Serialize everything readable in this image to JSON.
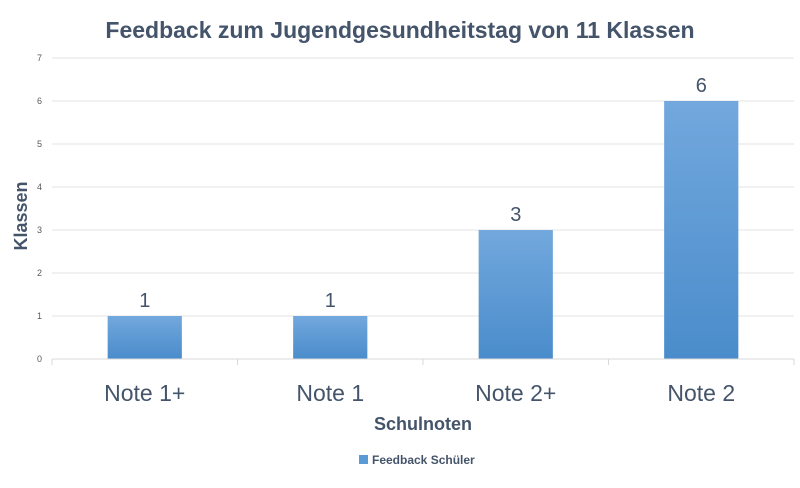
{
  "chart_data": {
    "type": "bar",
    "title": "Feedback zum Jugendgesundheitstag von 11 Klassen",
    "xlabel": "Schulnoten",
    "ylabel": "Klassen",
    "categories": [
      "Note 1+",
      "Note 1",
      "Note 2+",
      "Note 2"
    ],
    "series": [
      {
        "name": "Feedback Schüler",
        "values": [
          1,
          1,
          3,
          6
        ],
        "color": "#5b9bd5"
      }
    ],
    "ylim": [
      0,
      7
    ],
    "yticks": [
      "0",
      "1",
      "2",
      "3",
      "4",
      "5",
      "6",
      "7"
    ],
    "grid": true,
    "legend_position": "bottom"
  }
}
